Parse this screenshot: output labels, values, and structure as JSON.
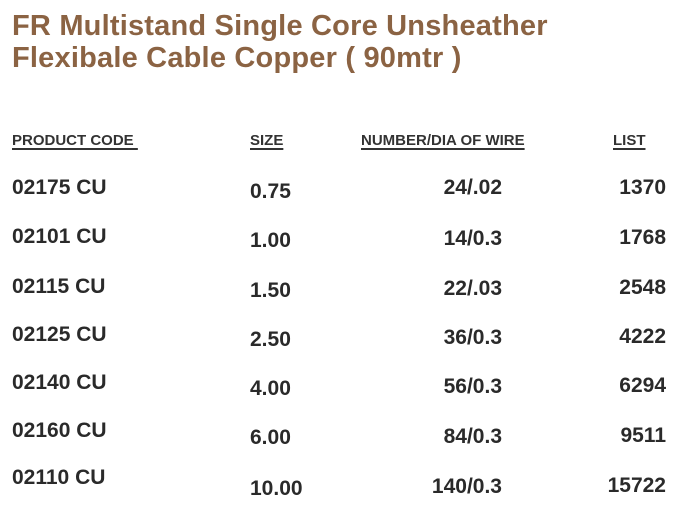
{
  "title": {
    "line1": "FR Multistand Single Core Unsheather",
    "line2": "Flexibale Cable Copper ( 90mtr )"
  },
  "colors": {
    "title": "#8b6343",
    "text": "#2a2a2a"
  },
  "table": {
    "headers": {
      "code": "PRODUCT CODE ",
      "size": "SIZE",
      "wire": "NUMBER/DIA OF WIRE",
      "list": "LIST"
    },
    "rows": [
      {
        "code": "02175 CU",
        "size": "0.75",
        "wire": "24/.02",
        "list": "1370"
      },
      {
        "code": "02101 CU",
        "size": "1.00",
        "wire": "14/0.3",
        "list": "1768"
      },
      {
        "code": "02115 CU",
        "size": "1.50",
        "wire": "22/.03",
        "list": "2548"
      },
      {
        "code": "02125 CU",
        "size": "2.50",
        "wire": "36/0.3",
        "list": "4222"
      },
      {
        "code": "02140 CU",
        "size": "4.00",
        "wire": "56/0.3",
        "list": "6294"
      },
      {
        "code": "02160 CU",
        "size": "6.00",
        "wire": "84/0.3",
        "list": "9511"
      },
      {
        "code": "02110 CU",
        "size": "10.00",
        "wire": "140/0.3",
        "list": "15722"
      }
    ]
  }
}
